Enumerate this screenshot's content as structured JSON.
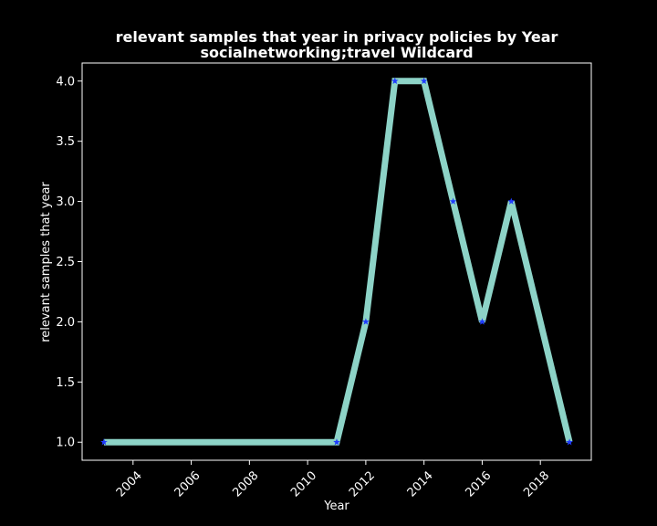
{
  "chart_data": {
    "type": "line",
    "title_line1": "relevant samples that year in privacy policies by Year",
    "title_line2": "socialnetworking;travel Wildcard",
    "xlabel": "Year",
    "ylabel": "relevant samples that year",
    "xlim": [
      2002.25,
      2019.75
    ],
    "ylim": [
      0.85,
      4.15
    ],
    "xticks": [
      "2004",
      "2006",
      "2008",
      "2010",
      "2012",
      "2014",
      "2016",
      "2018"
    ],
    "yticks": [
      "1.0",
      "1.5",
      "2.0",
      "2.5",
      "3.0",
      "3.5",
      "4.0"
    ],
    "grid": false,
    "series": [
      {
        "x": [
          2003,
          2011,
          2012,
          2013,
          2014,
          2015,
          2016,
          2017,
          2019
        ],
        "values": [
          1,
          1,
          2,
          4,
          4,
          3,
          2,
          3,
          1
        ],
        "line_color": "#8dd3c7",
        "marker": "star",
        "marker_color": "#1f3bff"
      }
    ]
  }
}
